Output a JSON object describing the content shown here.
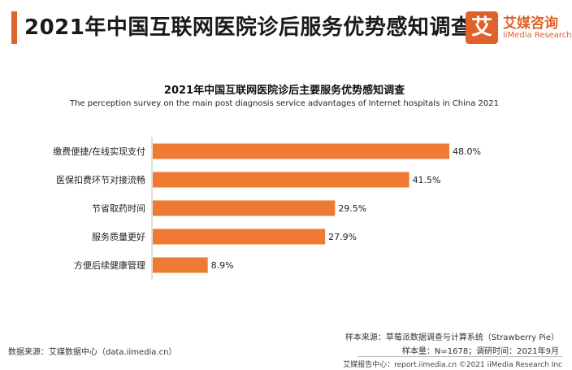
{
  "header": {
    "title": "2021年中国互联网医院诊后服务优势感知调查",
    "accent_color": "#e0622a"
  },
  "logo": {
    "mark": "艾",
    "name_cn": "艾媒咨询",
    "name_en": "iiMedia Research"
  },
  "chart_data": {
    "type": "bar",
    "orientation": "horizontal",
    "title": "2021年中国互联网医院诊后主要服务优势感知调查",
    "subtitle": "The perception survey on the  main post diagnosis service advantages of Internet hospitals in China 2021",
    "categories": [
      "缴费便捷/在线实现支付",
      "医保扣费环节对接流畅",
      "节省取药时间",
      "服务质量更好",
      "方便后续健康管理"
    ],
    "values": [
      48.0,
      41.5,
      29.5,
      27.9,
      8.9
    ],
    "value_labels": [
      "48.0%",
      "41.5%",
      "29.5%",
      "27.9%",
      "8.9%"
    ],
    "unit": "%",
    "bar_color": "#ef7a34",
    "xlim": [
      0,
      50
    ],
    "grid": false,
    "legend": "none"
  },
  "footer": {
    "source_left": "数据来源：艾媒数据中心（data.iimedia.cn）",
    "sample_source": "样本来源：草莓派数据调查与计算系统（Strawberry Pie）",
    "sample_info": "样本量：N=1678；调研时间：2021年9月",
    "report_center": "艾媒报告中心：report.iimedia.cn  ©2021  iiMedia Research  Inc"
  }
}
